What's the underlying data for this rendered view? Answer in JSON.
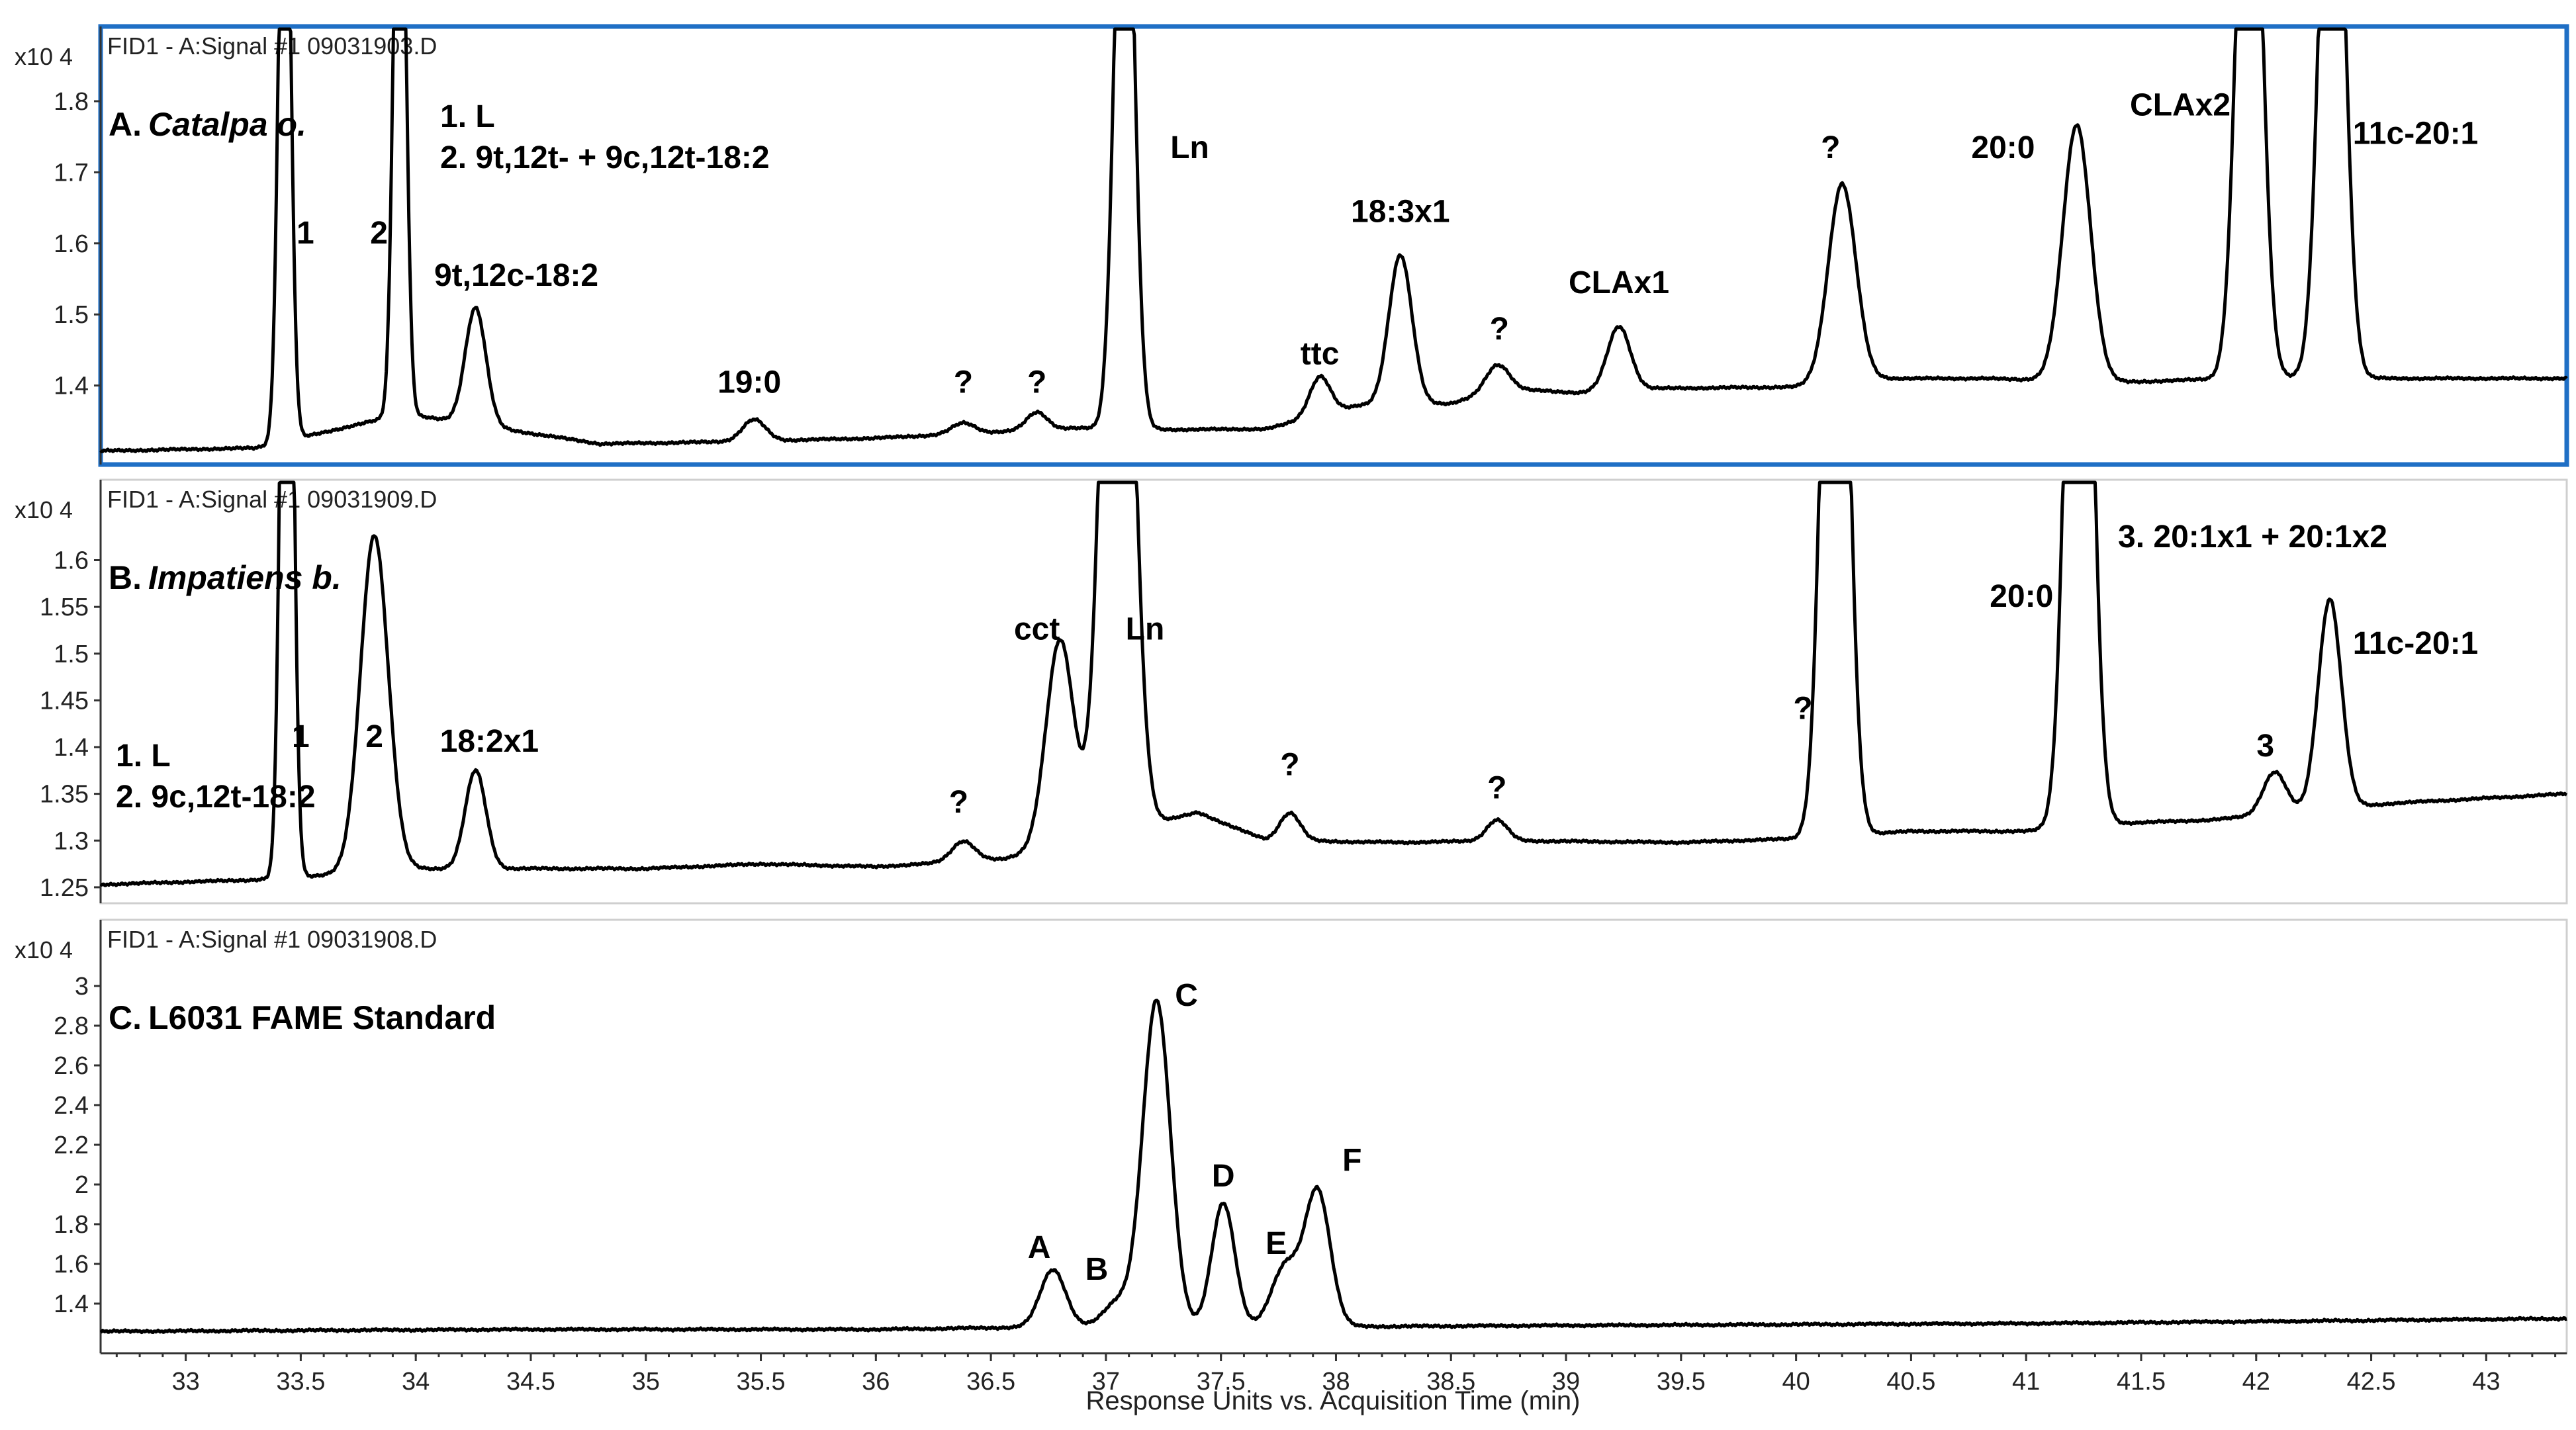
{
  "x_axis": {
    "title": "Response Units vs. Acquisition Time (min)",
    "range": [
      32.63,
      43.35
    ],
    "ticks": [
      "33",
      "33.5",
      "34",
      "34.5",
      "35",
      "35.5",
      "36",
      "36.5",
      "37",
      "37.5",
      "38",
      "38.5",
      "39",
      "39.5",
      "40",
      "40.5",
      "41",
      "41.5",
      "42",
      "42.5",
      "43"
    ]
  },
  "chart_data": [
    {
      "type": "line",
      "header": "FID1 - A:Signal #1 09031903.D",
      "scale_label": "x10 4",
      "title": {
        "letter": "A.",
        "name": "Catalpa o."
      },
      "selected": true,
      "ylim": [
        1.3,
        1.84
      ],
      "yticks": [
        "1.8",
        "1.7",
        "1.6",
        "1.5",
        "1.4"
      ],
      "legend_lines": [
        "1. L",
        "2. 9t,12t- + 9c,12t-18:2"
      ],
      "baseline": [
        [
          32.63,
          1.308
        ],
        [
          33.3,
          1.312
        ],
        [
          33.95,
          1.36
        ],
        [
          34.8,
          1.318
        ],
        [
          35.2,
          1.32
        ],
        [
          36.0,
          1.326
        ],
        [
          36.55,
          1.335
        ],
        [
          36.85,
          1.34
        ],
        [
          37.3,
          1.338
        ],
        [
          37.7,
          1.339
        ],
        [
          38.1,
          1.372
        ],
        [
          38.5,
          1.375
        ],
        [
          38.75,
          1.395
        ],
        [
          39.05,
          1.39
        ],
        [
          39.4,
          1.396
        ],
        [
          40.0,
          1.398
        ],
        [
          40.4,
          1.41
        ],
        [
          40.8,
          1.41
        ],
        [
          41.45,
          1.405
        ],
        [
          41.9,
          1.41
        ],
        [
          42.15,
          1.412
        ],
        [
          42.6,
          1.41
        ],
        [
          43.35,
          1.41
        ]
      ],
      "peaks": [
        {
          "label": "1",
          "t": 33.43,
          "height": 1.0,
          "width": 0.025
        },
        {
          "label": "2",
          "t": 33.93,
          "height": 1.0,
          "width": 0.025
        },
        {
          "label": "9t,12c-18:2",
          "t": 34.26,
          "height": 0.165,
          "width": 0.045
        },
        {
          "label": "19:0",
          "t": 35.47,
          "height": 0.03,
          "width": 0.05
        },
        {
          "label": "?",
          "t": 36.38,
          "height": 0.015,
          "width": 0.05
        },
        {
          "label": "?",
          "t": 36.7,
          "height": 0.025,
          "width": 0.045
        },
        {
          "label": "Ln",
          "t": 37.08,
          "height": 1.0,
          "width": 0.04
        },
        {
          "label": "ttc",
          "t": 37.93,
          "height": 0.055,
          "width": 0.045
        },
        {
          "label": "18:3x1",
          "t": 38.28,
          "height": 0.21,
          "width": 0.05
        },
        {
          "label": "?",
          "t": 38.7,
          "height": 0.038,
          "width": 0.05
        },
        {
          "label": "CLAx1",
          "t": 39.23,
          "height": 0.09,
          "width": 0.05
        },
        {
          "label": "?",
          "t": 40.2,
          "height": 0.28,
          "width": 0.06
        },
        {
          "label": "20:0",
          "t": 41.22,
          "height": 0.36,
          "width": 0.06
        },
        {
          "label": "CLAx2",
          "t": 41.97,
          "height": 1.0,
          "width": 0.05
        },
        {
          "label": "11c-20:1",
          "t": 42.33,
          "height": 1.0,
          "width": 0.05
        }
      ],
      "annotations": [
        {
          "text": "1",
          "t": 33.52,
          "y": 1.6,
          "align": "middle"
        },
        {
          "text": "2",
          "t": 33.84,
          "y": 1.6,
          "align": "middle"
        },
        {
          "text": "9t,12c-18:2",
          "t": 34.08,
          "y": 1.54,
          "align": "start"
        },
        {
          "text": "19:0",
          "t": 35.45,
          "y": 1.39,
          "align": "middle"
        },
        {
          "text": "?",
          "t": 36.38,
          "y": 1.39,
          "align": "middle"
        },
        {
          "text": "?",
          "t": 36.7,
          "y": 1.39,
          "align": "middle"
        },
        {
          "text": "Ln",
          "t": 37.28,
          "y": 1.72,
          "align": "start"
        },
        {
          "text": "ttc",
          "t": 37.93,
          "y": 1.43,
          "align": "middle"
        },
        {
          "text": "18:3x1",
          "t": 38.28,
          "y": 1.63,
          "align": "middle"
        },
        {
          "text": "?",
          "t": 38.71,
          "y": 1.465,
          "align": "middle"
        },
        {
          "text": "CLAx1",
          "t": 39.23,
          "y": 1.53,
          "align": "middle"
        },
        {
          "text": "?",
          "t": 40.15,
          "y": 1.72,
          "align": "middle"
        },
        {
          "text": "20:0",
          "t": 40.9,
          "y": 1.72,
          "align": "middle"
        },
        {
          "text": "CLAx2",
          "t": 41.67,
          "y": 1.78,
          "align": "middle"
        },
        {
          "text": "11c-20:1",
          "t": 42.42,
          "y": 1.74,
          "align": "start"
        }
      ]
    },
    {
      "type": "line",
      "header": "FID1 - A:Signal #1 09031909.D",
      "scale_label": "x10 4",
      "title": {
        "letter": "B.",
        "name": "Impatiens b."
      },
      "selected": false,
      "ylim": [
        1.24,
        1.64
      ],
      "yticks": [
        "1.6",
        "1.55",
        "1.5",
        "1.45",
        "1.4",
        "1.35",
        "1.3",
        "1.25"
      ],
      "legend_lines": [
        "1. L",
        "2. 9c,12t-18:2"
      ],
      "extra_label": "3. 20:1x1 + 20:1x2",
      "baseline": [
        [
          32.63,
          1.253
        ],
        [
          33.3,
          1.258
        ],
        [
          34.0,
          1.27
        ],
        [
          34.5,
          1.27
        ],
        [
          35.0,
          1.27
        ],
        [
          35.5,
          1.275
        ],
        [
          36.0,
          1.272
        ],
        [
          36.55,
          1.28
        ],
        [
          37.4,
          1.33
        ],
        [
          37.7,
          1.3
        ],
        [
          38.3,
          1.298
        ],
        [
          38.7,
          1.3
        ],
        [
          39.5,
          1.298
        ],
        [
          40.0,
          1.302
        ],
        [
          40.5,
          1.31
        ],
        [
          41.0,
          1.31
        ],
        [
          41.35,
          1.318
        ],
        [
          41.8,
          1.322
        ],
        [
          42.6,
          1.34
        ],
        [
          43.35,
          1.35
        ]
      ],
      "peaks": [
        {
          "label": "1",
          "t": 33.44,
          "height": 1.0,
          "width": 0.025
        },
        {
          "label": "2",
          "t": 33.82,
          "height": 0.36,
          "width": 0.06
        },
        {
          "label": "18:2x1",
          "t": 34.26,
          "height": 0.105,
          "width": 0.045
        },
        {
          "label": "?",
          "t": 36.38,
          "height": 0.022,
          "width": 0.05
        },
        {
          "label": "cct",
          "t": 36.8,
          "height": 0.22,
          "width": 0.06
        },
        {
          "label": "Ln",
          "t": 37.05,
          "height": 1.0,
          "width": 0.06
        },
        {
          "label": "?",
          "t": 37.8,
          "height": 0.03,
          "width": 0.045
        },
        {
          "label": "?",
          "t": 38.7,
          "height": 0.022,
          "width": 0.045
        },
        {
          "label": "?",
          "t": 40.17,
          "height": 1.0,
          "width": 0.05
        },
        {
          "label": "20:0",
          "t": 41.23,
          "height": 1.0,
          "width": 0.05
        },
        {
          "label": "3",
          "t": 42.08,
          "height": 0.045,
          "width": 0.05
        },
        {
          "label": "11c-20:1",
          "t": 42.32,
          "height": 0.225,
          "width": 0.05
        }
      ],
      "annotations": [
        {
          "text": "1",
          "t": 33.5,
          "y": 1.4,
          "align": "middle"
        },
        {
          "text": "2",
          "t": 33.82,
          "y": 1.4,
          "align": "middle"
        },
        {
          "text": "18:2x1",
          "t": 34.32,
          "y": 1.395,
          "align": "middle"
        },
        {
          "text": "?",
          "t": 36.36,
          "y": 1.33,
          "align": "middle"
        },
        {
          "text": "cct",
          "t": 36.7,
          "y": 1.515,
          "align": "middle"
        },
        {
          "text": "Ln",
          "t": 37.17,
          "y": 1.515,
          "align": "middle"
        },
        {
          "text": "?",
          "t": 37.8,
          "y": 1.37,
          "align": "middle"
        },
        {
          "text": "?",
          "t": 38.7,
          "y": 1.345,
          "align": "middle"
        },
        {
          "text": "?",
          "t": 40.03,
          "y": 1.43,
          "align": "middle"
        },
        {
          "text": "20:0",
          "t": 40.98,
          "y": 1.55,
          "align": "middle"
        },
        {
          "text": "3",
          "t": 42.04,
          "y": 1.39,
          "align": "middle"
        },
        {
          "text": "11c-20:1",
          "t": 42.42,
          "y": 1.5,
          "align": "start"
        }
      ]
    },
    {
      "type": "line",
      "header": "FID1 - A:Signal #1 09031908.D",
      "scale_label": "x10 4",
      "title": {
        "letter": "C.",
        "name": "L6031 FAME Standard"
      },
      "selected": false,
      "ylim": [
        1.2,
        3.1
      ],
      "yticks": [
        "3",
        "2.8",
        "2.6",
        "2.4",
        "2.2",
        "2",
        "1.8",
        "1.6",
        "1.4"
      ],
      "baseline": [
        [
          32.63,
          1.26
        ],
        [
          33.5,
          1.265
        ],
        [
          34.5,
          1.27
        ],
        [
          36.0,
          1.27
        ],
        [
          36.5,
          1.278
        ],
        [
          37.0,
          1.285
        ],
        [
          38.2,
          1.285
        ],
        [
          39.0,
          1.29
        ],
        [
          40.0,
          1.295
        ],
        [
          41.0,
          1.3
        ],
        [
          42.0,
          1.31
        ],
        [
          43.35,
          1.325
        ]
      ],
      "peaks": [
        {
          "label": "A",
          "t": 36.77,
          "height": 0.29,
          "width": 0.055
        },
        {
          "label": "B",
          "t": 37.05,
          "height": 0.12,
          "width": 0.06
        },
        {
          "label": "C",
          "t": 37.22,
          "height": 1.64,
          "width": 0.06
        },
        {
          "label": "D",
          "t": 37.51,
          "height": 0.62,
          "width": 0.05
        },
        {
          "label": "E",
          "t": 37.78,
          "height": 0.3,
          "width": 0.06
        },
        {
          "label": "F",
          "t": 37.92,
          "height": 0.68,
          "width": 0.055
        }
      ],
      "annotations": [
        {
          "text": "A",
          "t": 36.71,
          "y": 1.63,
          "align": "middle"
        },
        {
          "text": "B",
          "t": 36.96,
          "y": 1.52,
          "align": "middle"
        },
        {
          "text": "C",
          "t": 37.35,
          "y": 2.9,
          "align": "middle"
        },
        {
          "text": "D",
          "t": 37.51,
          "y": 1.99,
          "align": "middle"
        },
        {
          "text": "E",
          "t": 37.74,
          "y": 1.65,
          "align": "middle"
        },
        {
          "text": "F",
          "t": 38.07,
          "y": 2.07,
          "align": "middle"
        }
      ]
    }
  ]
}
